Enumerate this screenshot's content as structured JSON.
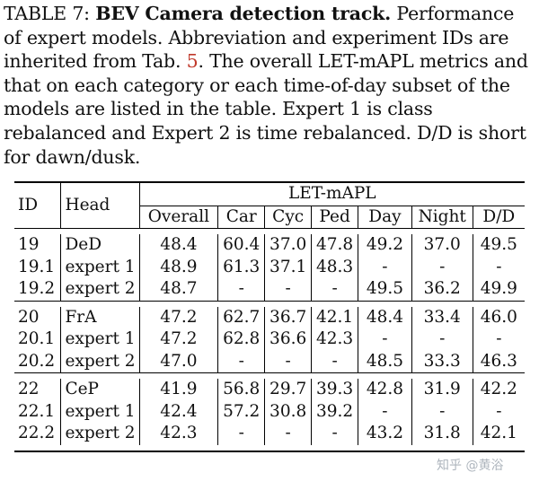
{
  "caption": {
    "label": "TABLE 7:",
    "bold_title": "BEV Camera detection track.",
    "text_part1": " Performance of expert models. Abbreviation and experiment IDs are inherited from Tab. ",
    "ref": "5",
    "text_part2": ". The overall LET-mAPL metrics and that on each category or each time-of-day subset of the models are listed in the table. Expert 1 is class rebalanced and Expert 2 is time rebalanced. D/D is short for dawn/dusk."
  },
  "table": {
    "header": {
      "id": "ID",
      "head": "Head",
      "group": "LET-mAPL",
      "columns": [
        "Overall",
        "Car",
        "Cyc",
        "Ped",
        "Day",
        "Night",
        "D/D"
      ]
    },
    "groups": [
      [
        [
          "19",
          "DeD",
          "48.4",
          "60.4",
          "37.0",
          "47.8",
          "49.2",
          "37.0",
          "49.5"
        ],
        [
          "19.1",
          "expert 1",
          "48.9",
          "61.3",
          "37.1",
          "48.3",
          "-",
          "-",
          "-"
        ],
        [
          "19.2",
          "expert 2",
          "48.7",
          "-",
          "-",
          "-",
          "49.5",
          "36.2",
          "49.9"
        ]
      ],
      [
        [
          "20",
          "FrA",
          "47.2",
          "62.7",
          "36.7",
          "42.1",
          "48.4",
          "33.4",
          "46.0"
        ],
        [
          "20.1",
          "expert 1",
          "47.2",
          "62.8",
          "36.6",
          "42.3",
          "-",
          "-",
          "-"
        ],
        [
          "20.2",
          "expert 2",
          "47.0",
          "-",
          "-",
          "-",
          "48.5",
          "33.3",
          "46.3"
        ]
      ],
      [
        [
          "22",
          "CeP",
          "41.9",
          "56.8",
          "29.7",
          "39.3",
          "42.8",
          "31.9",
          "42.2"
        ],
        [
          "22.1",
          "expert 1",
          "42.4",
          "57.2",
          "30.8",
          "39.2",
          "-",
          "-",
          "-"
        ],
        [
          "22.2",
          "expert 2",
          "42.3",
          "-",
          "-",
          "-",
          "43.2",
          "31.8",
          "42.1"
        ]
      ]
    ]
  },
  "watermark": "知乎 @黄浴"
}
